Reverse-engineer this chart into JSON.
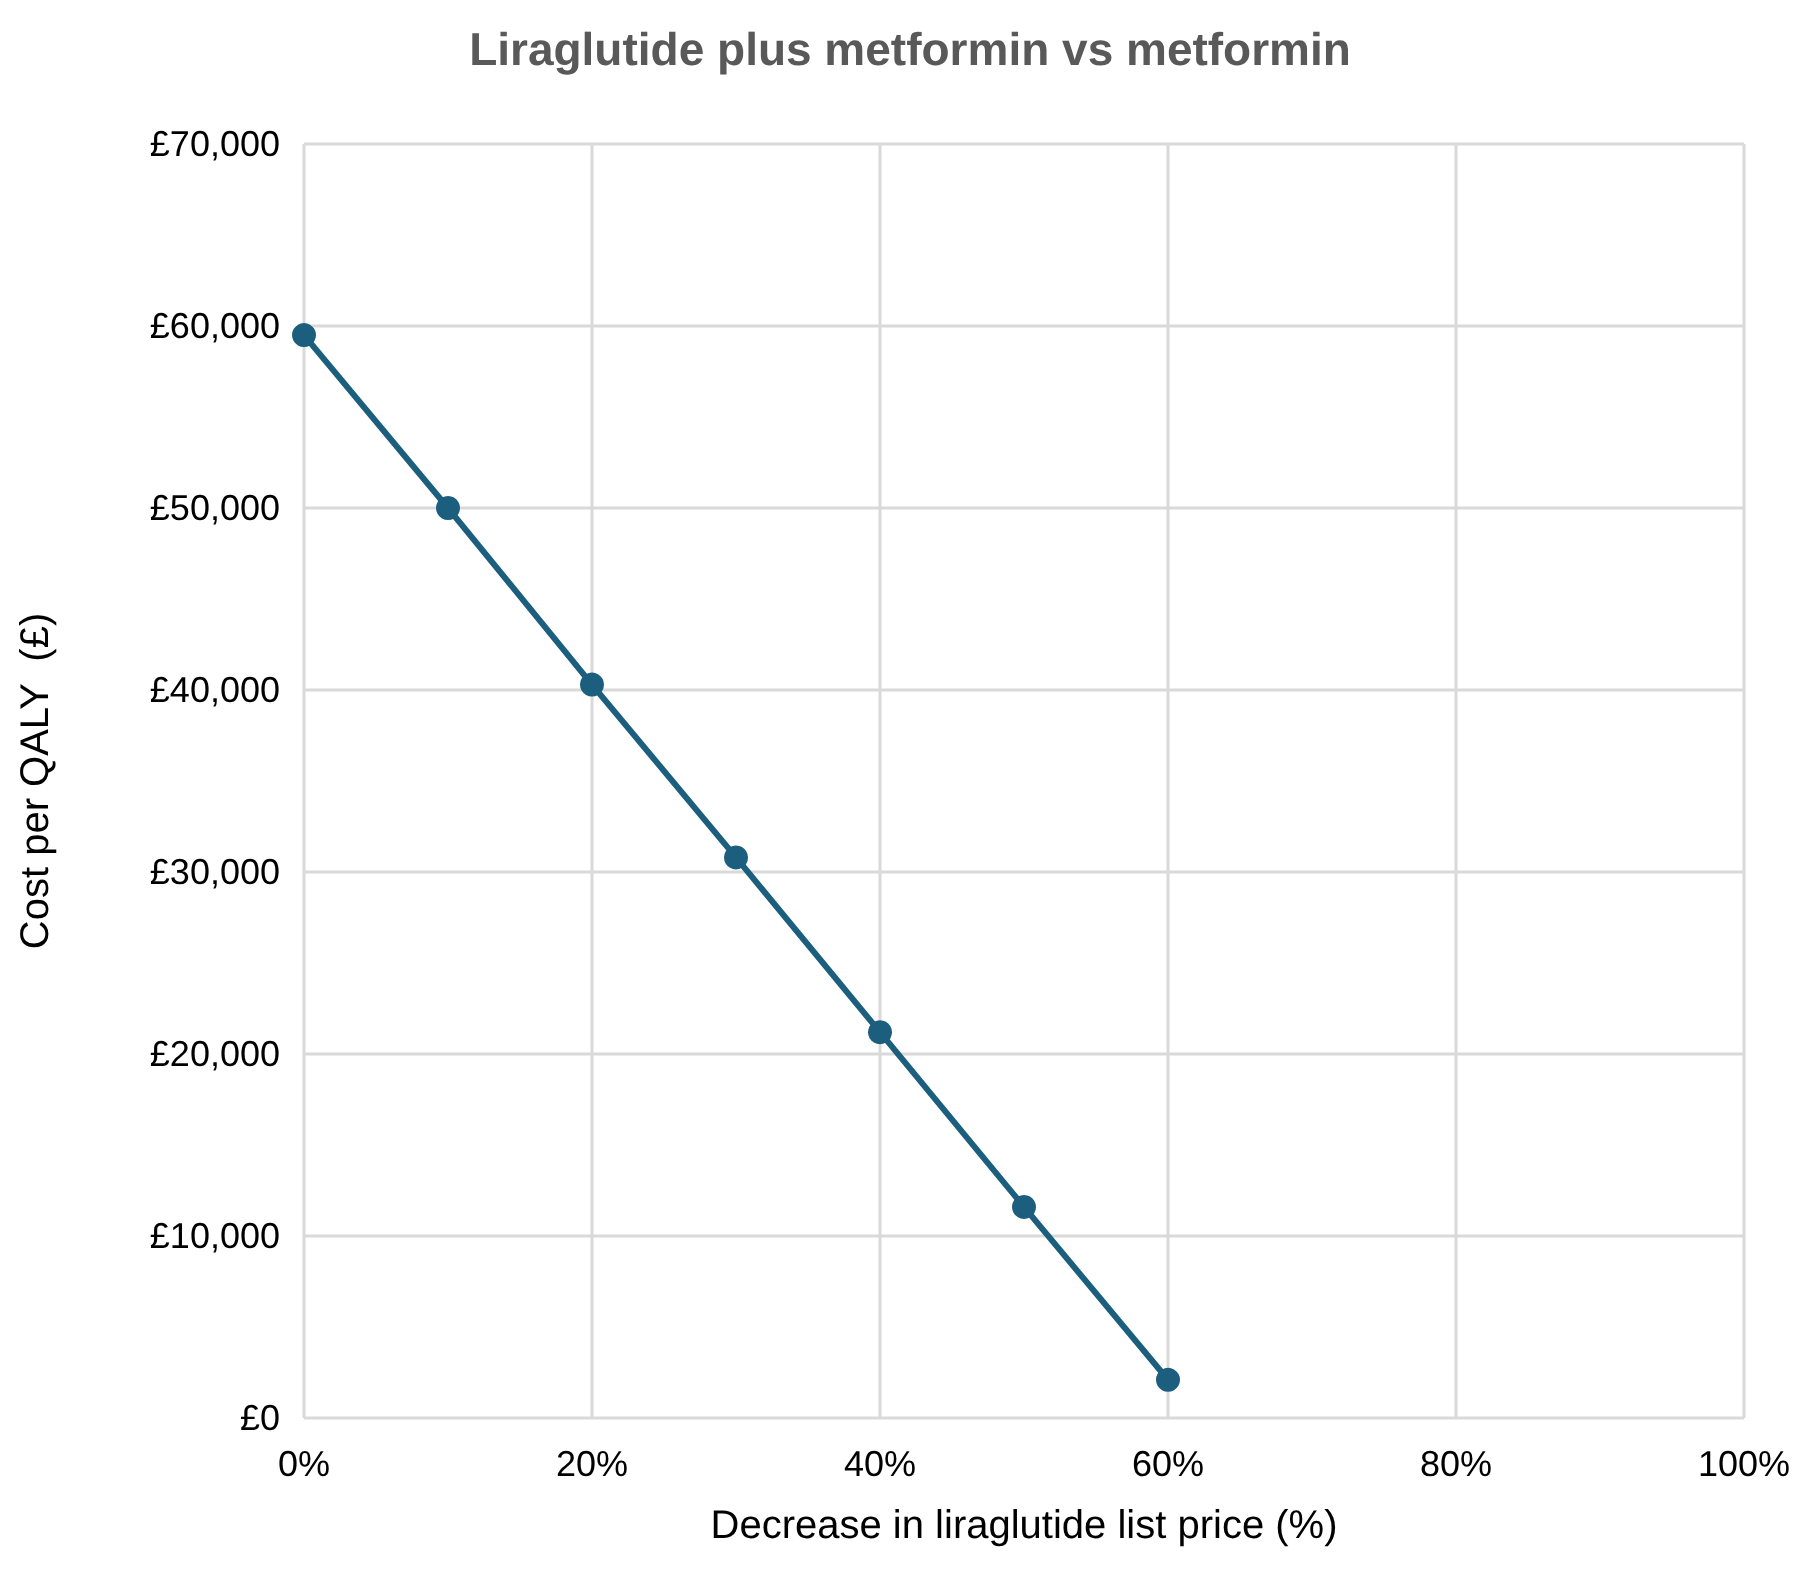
{
  "chart_data": {
    "type": "line",
    "title": "Liraglutide plus metformin vs metformin",
    "xlabel": "Decrease in liraglutide list price (%)",
    "ylabel": "Cost per QALY  (£)",
    "x": [
      0,
      10,
      20,
      30,
      40,
      50,
      60
    ],
    "series": [
      {
        "color": "#1b5e7e",
        "values": [
          59500,
          50000,
          40300,
          30800,
          21200,
          11600,
          2100
        ]
      }
    ],
    "xlim": [
      0,
      100
    ],
    "xticks": [
      {
        "value": 0,
        "label": "0%"
      },
      {
        "value": 20,
        "label": "20%"
      },
      {
        "value": 40,
        "label": "40%"
      },
      {
        "value": 60,
        "label": "60%"
      },
      {
        "value": 80,
        "label": "80%"
      },
      {
        "value": 100,
        "label": "100%"
      }
    ],
    "ylim": [
      0,
      70000
    ],
    "yticks": [
      {
        "value": 0,
        "label": "£0"
      },
      {
        "value": 10000,
        "label": "£10,000"
      },
      {
        "value": 20000,
        "label": "£20,000"
      },
      {
        "value": 30000,
        "label": "£30,000"
      },
      {
        "value": 40000,
        "label": "£40,000"
      },
      {
        "value": 50000,
        "label": "£50,000"
      },
      {
        "value": 60000,
        "label": "£60,000"
      },
      {
        "value": 70000,
        "label": "£70,000"
      }
    ],
    "grid": true,
    "marker": "circle",
    "line_style": "solid"
  }
}
